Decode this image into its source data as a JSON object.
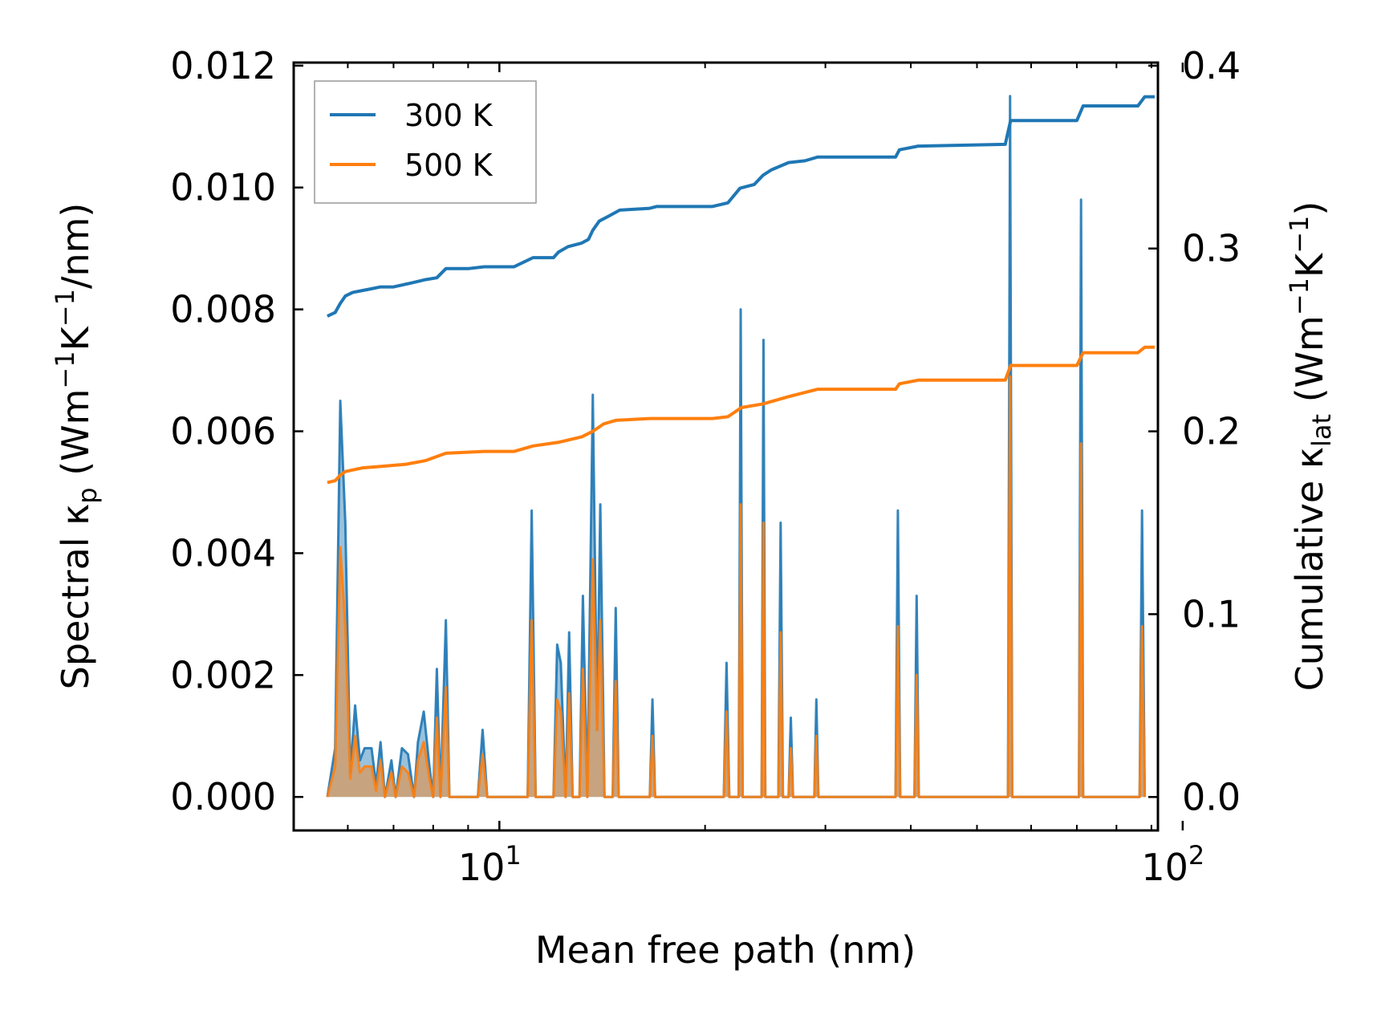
{
  "chart_data": {
    "type": "line",
    "x_scale": "log",
    "xlim": [
      5.0,
      92.0
    ],
    "ylim_left": [
      -0.00055,
      0.01205
    ],
    "ylim_right": [
      -0.0183,
      0.4017
    ],
    "xlabel": "Mean free path (nm)",
    "ylabel_left": {
      "text": "Spectral κ",
      "sub": "p",
      "unit_pre": " (Wm",
      "sup1": "−1",
      "unit_mid": "K",
      "sup2": "−1",
      "unit_post": "/nm)"
    },
    "ylabel_right": {
      "text": "Cumulative κ",
      "sub": "lat",
      "unit_pre": " (Wm",
      "sup1": "−1",
      "unit_mid": "K",
      "sup2": "−1",
      "unit_post": ")"
    },
    "x_ticks": [
      {
        "value": 10,
        "base": "10",
        "exp": "1"
      },
      {
        "value": 100,
        "base": "10",
        "exp": "2"
      }
    ],
    "y_ticks_left": [
      0.0,
      0.002,
      0.004,
      0.006,
      0.008,
      0.01,
      0.012
    ],
    "y_tick_labels_left": [
      "0.000",
      "0.002",
      "0.004",
      "0.006",
      "0.008",
      "0.010",
      "0.012"
    ],
    "y_ticks_right": [
      0.0,
      0.1,
      0.2,
      0.3,
      0.4
    ],
    "y_tick_labels_right": [
      "0.0",
      "0.1",
      "0.2",
      "0.3",
      "0.4"
    ],
    "legend": {
      "position": "top-left",
      "entries": [
        "300 K",
        "500 K"
      ]
    },
    "colors": {
      "300K": "#1f77b4",
      "500K": "#ff7f0e",
      "spectral_fill": "#b08a64"
    },
    "spectral_300K": [
      [
        5.6,
        0.0
      ],
      [
        5.75,
        0.0008
      ],
      [
        5.85,
        0.0065
      ],
      [
        5.95,
        0.0045
      ],
      [
        6.05,
        0.0004
      ],
      [
        6.15,
        0.0015
      ],
      [
        6.25,
        0.0006
      ],
      [
        6.35,
        0.0008
      ],
      [
        6.5,
        0.0008
      ],
      [
        6.6,
        0.0002
      ],
      [
        6.7,
        0.0009
      ],
      [
        6.8,
        0.0
      ],
      [
        6.95,
        0.0006
      ],
      [
        7.05,
        0.0
      ],
      [
        7.2,
        0.0008
      ],
      [
        7.35,
        0.0007
      ],
      [
        7.5,
        0.0
      ],
      [
        7.6,
        0.0009
      ],
      [
        7.75,
        0.0014
      ],
      [
        7.9,
        0.0005
      ],
      [
        8.0,
        0.0
      ],
      [
        8.1,
        0.0021
      ],
      [
        8.2,
        0.0
      ],
      [
        8.35,
        0.0029
      ],
      [
        8.45,
        0.0
      ],
      [
        9.3,
        0.0
      ],
      [
        9.45,
        0.0011
      ],
      [
        9.6,
        0.0
      ],
      [
        11.0,
        0.0
      ],
      [
        11.15,
        0.0047
      ],
      [
        11.3,
        0.0
      ],
      [
        12.0,
        0.0
      ],
      [
        12.15,
        0.0025
      ],
      [
        12.3,
        0.0022
      ],
      [
        12.5,
        0.0
      ],
      [
        12.65,
        0.0027
      ],
      [
        12.8,
        0.0
      ],
      [
        13.1,
        0.0
      ],
      [
        13.25,
        0.0033
      ],
      [
        13.45,
        0.0
      ],
      [
        13.7,
        0.0066
      ],
      [
        13.9,
        0.0011
      ],
      [
        14.05,
        0.0048
      ],
      [
        14.25,
        0.0
      ],
      [
        14.65,
        0.0
      ],
      [
        14.8,
        0.0031
      ],
      [
        14.95,
        0.0
      ],
      [
        16.6,
        0.0
      ],
      [
        16.75,
        0.0016
      ],
      [
        16.9,
        0.0
      ],
      [
        21.3,
        0.0
      ],
      [
        21.5,
        0.0022
      ],
      [
        21.7,
        0.0
      ],
      [
        22.4,
        0.0
      ],
      [
        22.55,
        0.008
      ],
      [
        22.7,
        0.0
      ],
      [
        24.2,
        0.0
      ],
      [
        24.35,
        0.0075
      ],
      [
        24.5,
        0.0
      ],
      [
        25.6,
        0.0
      ],
      [
        25.8,
        0.0045
      ],
      [
        26.0,
        0.0
      ],
      [
        26.5,
        0.0
      ],
      [
        26.7,
        0.0013
      ],
      [
        26.9,
        0.0
      ],
      [
        28.9,
        0.0
      ],
      [
        29.1,
        0.0016
      ],
      [
        29.3,
        0.0
      ],
      [
        38.0,
        0.0
      ],
      [
        38.3,
        0.0047
      ],
      [
        38.6,
        0.0
      ],
      [
        40.5,
        0.0
      ],
      [
        40.8,
        0.0033
      ],
      [
        41.1,
        0.0
      ],
      [
        55.5,
        0.0
      ],
      [
        55.9,
        0.0115
      ],
      [
        56.3,
        0.0
      ],
      [
        70.5,
        0.0
      ],
      [
        71.0,
        0.0098
      ],
      [
        71.5,
        0.0
      ],
      [
        86.5,
        0.0
      ],
      [
        87.2,
        0.0047
      ],
      [
        88.0,
        0.0
      ]
    ],
    "spectral_500K": [
      [
        5.6,
        0.0
      ],
      [
        5.75,
        0.0005
      ],
      [
        5.85,
        0.0041
      ],
      [
        5.95,
        0.0028
      ],
      [
        6.05,
        0.0003
      ],
      [
        6.15,
        0.001
      ],
      [
        6.25,
        0.0004
      ],
      [
        6.35,
        0.0005
      ],
      [
        6.5,
        0.0005
      ],
      [
        6.6,
        0.0001
      ],
      [
        6.7,
        0.0006
      ],
      [
        6.8,
        0.0
      ],
      [
        6.95,
        0.0004
      ],
      [
        7.05,
        0.0
      ],
      [
        7.2,
        0.0005
      ],
      [
        7.35,
        0.0004
      ],
      [
        7.5,
        0.0
      ],
      [
        7.6,
        0.0006
      ],
      [
        7.75,
        0.0009
      ],
      [
        7.9,
        0.0003
      ],
      [
        8.0,
        0.0
      ],
      [
        8.1,
        0.0013
      ],
      [
        8.2,
        0.0
      ],
      [
        8.35,
        0.0018
      ],
      [
        8.45,
        0.0
      ],
      [
        9.3,
        0.0
      ],
      [
        9.45,
        0.0007
      ],
      [
        9.6,
        0.0
      ],
      [
        11.0,
        0.0
      ],
      [
        11.15,
        0.0029
      ],
      [
        11.3,
        0.0
      ],
      [
        12.0,
        0.0
      ],
      [
        12.15,
        0.0016
      ],
      [
        12.3,
        0.0014
      ],
      [
        12.5,
        0.0
      ],
      [
        12.65,
        0.0017
      ],
      [
        12.8,
        0.0
      ],
      [
        13.1,
        0.0
      ],
      [
        13.25,
        0.0021
      ],
      [
        13.45,
        0.0
      ],
      [
        13.7,
        0.0039
      ],
      [
        13.9,
        0.0011
      ],
      [
        14.05,
        0.0029
      ],
      [
        14.25,
        0.0
      ],
      [
        14.65,
        0.0
      ],
      [
        14.8,
        0.0019
      ],
      [
        14.95,
        0.0
      ],
      [
        16.6,
        0.0
      ],
      [
        16.75,
        0.001
      ],
      [
        16.9,
        0.0
      ],
      [
        21.3,
        0.0
      ],
      [
        21.5,
        0.0014
      ],
      [
        21.7,
        0.0
      ],
      [
        22.4,
        0.0
      ],
      [
        22.55,
        0.0048
      ],
      [
        22.7,
        0.0
      ],
      [
        24.2,
        0.0
      ],
      [
        24.35,
        0.0045
      ],
      [
        24.5,
        0.0
      ],
      [
        25.6,
        0.0
      ],
      [
        25.8,
        0.0027
      ],
      [
        26.0,
        0.0
      ],
      [
        26.5,
        0.0
      ],
      [
        26.7,
        0.0008
      ],
      [
        26.9,
        0.0
      ],
      [
        28.9,
        0.0
      ],
      [
        29.1,
        0.001
      ],
      [
        29.3,
        0.0
      ],
      [
        38.0,
        0.0
      ],
      [
        38.3,
        0.0028
      ],
      [
        38.6,
        0.0
      ],
      [
        40.5,
        0.0
      ],
      [
        40.8,
        0.002
      ],
      [
        41.1,
        0.0
      ],
      [
        55.5,
        0.0
      ],
      [
        55.9,
        0.0069
      ],
      [
        56.3,
        0.0
      ],
      [
        70.5,
        0.0
      ],
      [
        71.0,
        0.0058
      ],
      [
        71.5,
        0.0
      ],
      [
        86.5,
        0.0
      ],
      [
        87.2,
        0.0028
      ],
      [
        88.0,
        0.0
      ]
    ],
    "cumulative_300K": [
      [
        5.6,
        0.263
      ],
      [
        5.75,
        0.265
      ],
      [
        5.85,
        0.27
      ],
      [
        5.95,
        0.274
      ],
      [
        6.1,
        0.276
      ],
      [
        6.3,
        0.277
      ],
      [
        6.5,
        0.278
      ],
      [
        6.7,
        0.279
      ],
      [
        7.0,
        0.279
      ],
      [
        7.4,
        0.281
      ],
      [
        7.8,
        0.283
      ],
      [
        8.1,
        0.284
      ],
      [
        8.35,
        0.289
      ],
      [
        9.0,
        0.289
      ],
      [
        9.5,
        0.29
      ],
      [
        10.5,
        0.29
      ],
      [
        11.2,
        0.295
      ],
      [
        12.0,
        0.295
      ],
      [
        12.2,
        0.298
      ],
      [
        12.6,
        0.301
      ],
      [
        13.2,
        0.303
      ],
      [
        13.5,
        0.305
      ],
      [
        13.7,
        0.31
      ],
      [
        14.0,
        0.315
      ],
      [
        14.5,
        0.318
      ],
      [
        15.0,
        0.321
      ],
      [
        16.6,
        0.322
      ],
      [
        17.0,
        0.323
      ],
      [
        20.5,
        0.323
      ],
      [
        21.6,
        0.325
      ],
      [
        22.5,
        0.333
      ],
      [
        23.6,
        0.335
      ],
      [
        24.3,
        0.34
      ],
      [
        25.0,
        0.343
      ],
      [
        26.5,
        0.347
      ],
      [
        28.0,
        0.348
      ],
      [
        29.2,
        0.35
      ],
      [
        38.0,
        0.35
      ],
      [
        38.5,
        0.354
      ],
      [
        41.0,
        0.356
      ],
      [
        55.0,
        0.357
      ],
      [
        56.0,
        0.37
      ],
      [
        70.0,
        0.37
      ],
      [
        71.5,
        0.378
      ],
      [
        86.0,
        0.378
      ],
      [
        88.0,
        0.383
      ],
      [
        91.0,
        0.383
      ]
    ],
    "cumulative_500K": [
      [
        5.6,
        0.172
      ],
      [
        5.75,
        0.173
      ],
      [
        5.85,
        0.176
      ],
      [
        5.95,
        0.178
      ],
      [
        6.3,
        0.18
      ],
      [
        6.8,
        0.181
      ],
      [
        7.3,
        0.182
      ],
      [
        7.8,
        0.184
      ],
      [
        8.35,
        0.188
      ],
      [
        9.5,
        0.189
      ],
      [
        10.5,
        0.189
      ],
      [
        11.2,
        0.192
      ],
      [
        12.2,
        0.194
      ],
      [
        13.2,
        0.197
      ],
      [
        13.7,
        0.2
      ],
      [
        14.2,
        0.204
      ],
      [
        14.8,
        0.206
      ],
      [
        16.6,
        0.207
      ],
      [
        20.5,
        0.207
      ],
      [
        21.6,
        0.208
      ],
      [
        22.6,
        0.213
      ],
      [
        24.3,
        0.215
      ],
      [
        26.5,
        0.219
      ],
      [
        29.2,
        0.223
      ],
      [
        38.0,
        0.223
      ],
      [
        38.5,
        0.226
      ],
      [
        41.0,
        0.228
      ],
      [
        55.0,
        0.228
      ],
      [
        56.0,
        0.236
      ],
      [
        70.0,
        0.236
      ],
      [
        71.5,
        0.243
      ],
      [
        86.0,
        0.243
      ],
      [
        88.0,
        0.246
      ],
      [
        91.0,
        0.246
      ]
    ]
  }
}
